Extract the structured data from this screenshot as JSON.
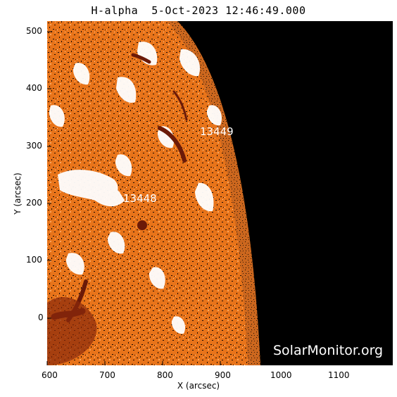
{
  "title": "H-alpha  5-Oct-2023 12:46:49.000",
  "x_axis": {
    "label": "X (arcsec)",
    "ticks": [
      "600",
      "700",
      "800",
      "900",
      "1000",
      "1100"
    ]
  },
  "y_axis": {
    "label": "Y (arcsec)",
    "ticks": [
      "0",
      "100",
      "200",
      "300",
      "400",
      "500"
    ]
  },
  "regions": [
    {
      "label": "13449"
    },
    {
      "label": "13448"
    }
  ],
  "watermark": "SolarMonitor.org",
  "colors": {
    "disk_base": "#e8741a",
    "bright_plage": "#ffffff",
    "dark_filament": "#6b1a08",
    "space": "#000000"
  }
}
